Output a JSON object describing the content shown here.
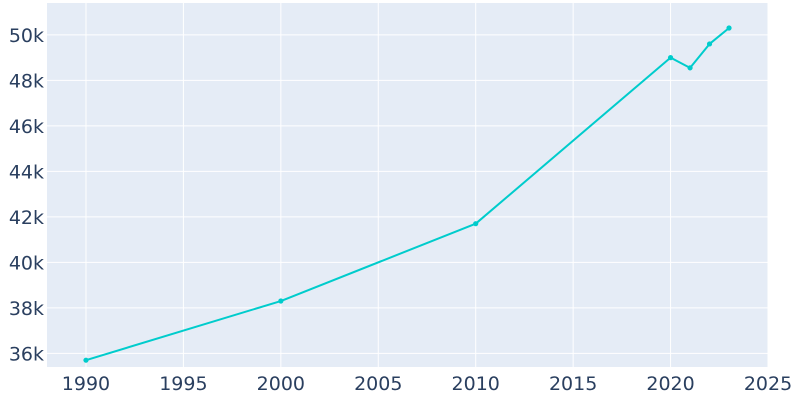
{
  "chart_data": {
    "type": "line",
    "title": "",
    "xlabel": "",
    "ylabel": "",
    "x": [
      1990,
      2000,
      2010,
      2020,
      2021,
      2022,
      2023
    ],
    "y": [
      35700,
      38300,
      41700,
      49000,
      48550,
      49600,
      50300
    ],
    "xlim": [
      1988,
      2025
    ],
    "ylim": [
      35400,
      51400
    ],
    "x_ticks": [
      1990,
      1995,
      2000,
      2005,
      2010,
      2015,
      2020,
      2025
    ],
    "x_tick_labels": [
      "1990",
      "1995",
      "2000",
      "2005",
      "2010",
      "2015",
      "2020",
      "2025"
    ],
    "y_ticks": [
      36000,
      38000,
      40000,
      42000,
      44000,
      46000,
      48000,
      50000
    ],
    "y_tick_labels": [
      "36k",
      "38k",
      "40k",
      "42k",
      "44k",
      "46k",
      "48k",
      "50k"
    ],
    "grid": true,
    "line_color": "#00cccc",
    "plot_background": "#e5ecf6",
    "grid_color": "#ffffff",
    "tick_color": "#2a3f5f"
  }
}
